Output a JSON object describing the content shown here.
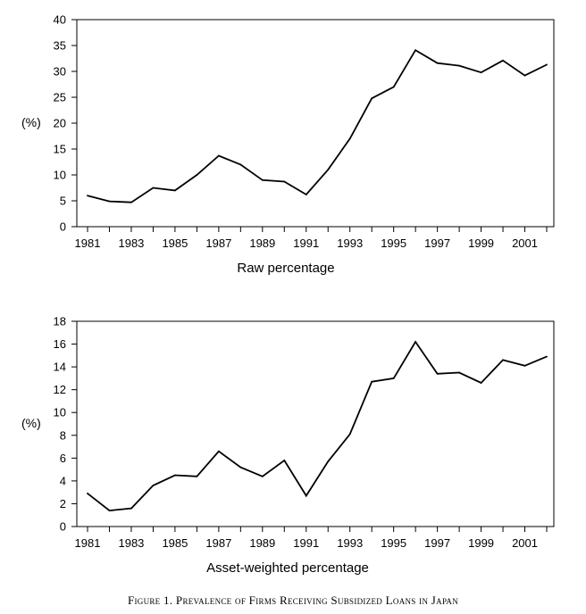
{
  "chart_data": [
    {
      "type": "line",
      "x": [
        1981,
        1982,
        1983,
        1984,
        1985,
        1986,
        1987,
        1988,
        1989,
        1990,
        1991,
        1992,
        1993,
        1994,
        1995,
        1996,
        1997,
        1998,
        1999,
        2000,
        2001,
        2002
      ],
      "series": [
        {
          "values": [
            6.0,
            4.9,
            4.7,
            7.5,
            7.0,
            10.0,
            13.7,
            12.0,
            9.0,
            8.7,
            6.2,
            11.0,
            17.0,
            24.8,
            27.0,
            34.1,
            31.6,
            31.1,
            29.8,
            32.1,
            29.2,
            31.3
          ]
        }
      ],
      "xlabel": "Raw percentage",
      "ylabel": "(%)",
      "ylim": [
        0,
        40
      ],
      "yticks": [
        "0",
        "5",
        "10",
        "15",
        "20",
        "25",
        "30",
        "35",
        "40"
      ],
      "xticks": [
        "1981",
        "1983",
        "1985",
        "1987",
        "1989",
        "1991",
        "1993",
        "1995",
        "1997",
        "1999",
        "2001"
      ],
      "grid": false,
      "line_color": "#000000"
    },
    {
      "type": "line",
      "x": [
        1981,
        1982,
        1983,
        1984,
        1985,
        1986,
        1987,
        1988,
        1989,
        1990,
        1991,
        1992,
        1993,
        1994,
        1995,
        1996,
        1997,
        1998,
        1999,
        2000,
        2001,
        2002
      ],
      "series": [
        {
          "values": [
            2.9,
            1.4,
            1.6,
            3.6,
            4.5,
            4.4,
            6.6,
            5.2,
            4.4,
            5.8,
            2.7,
            5.7,
            8.1,
            12.7,
            13.0,
            16.2,
            13.4,
            13.5,
            12.6,
            14.6,
            14.1,
            14.9
          ]
        }
      ],
      "xlabel": "Asset-weighted percentage",
      "ylabel": "(%)",
      "ylim": [
        0,
        18
      ],
      "yticks": [
        "0",
        "2",
        "4",
        "6",
        "8",
        "10",
        "12",
        "14",
        "16",
        "18"
      ],
      "xticks": [
        "1981",
        "1983",
        "1985",
        "1987",
        "1989",
        "1991",
        "1993",
        "1995",
        "1997",
        "1999",
        "2001"
      ],
      "grid": false,
      "line_color": "#000000"
    }
  ],
  "caption": "Figure 1. Prevalence of Firms Receiving Subsidized Loans in Japan"
}
